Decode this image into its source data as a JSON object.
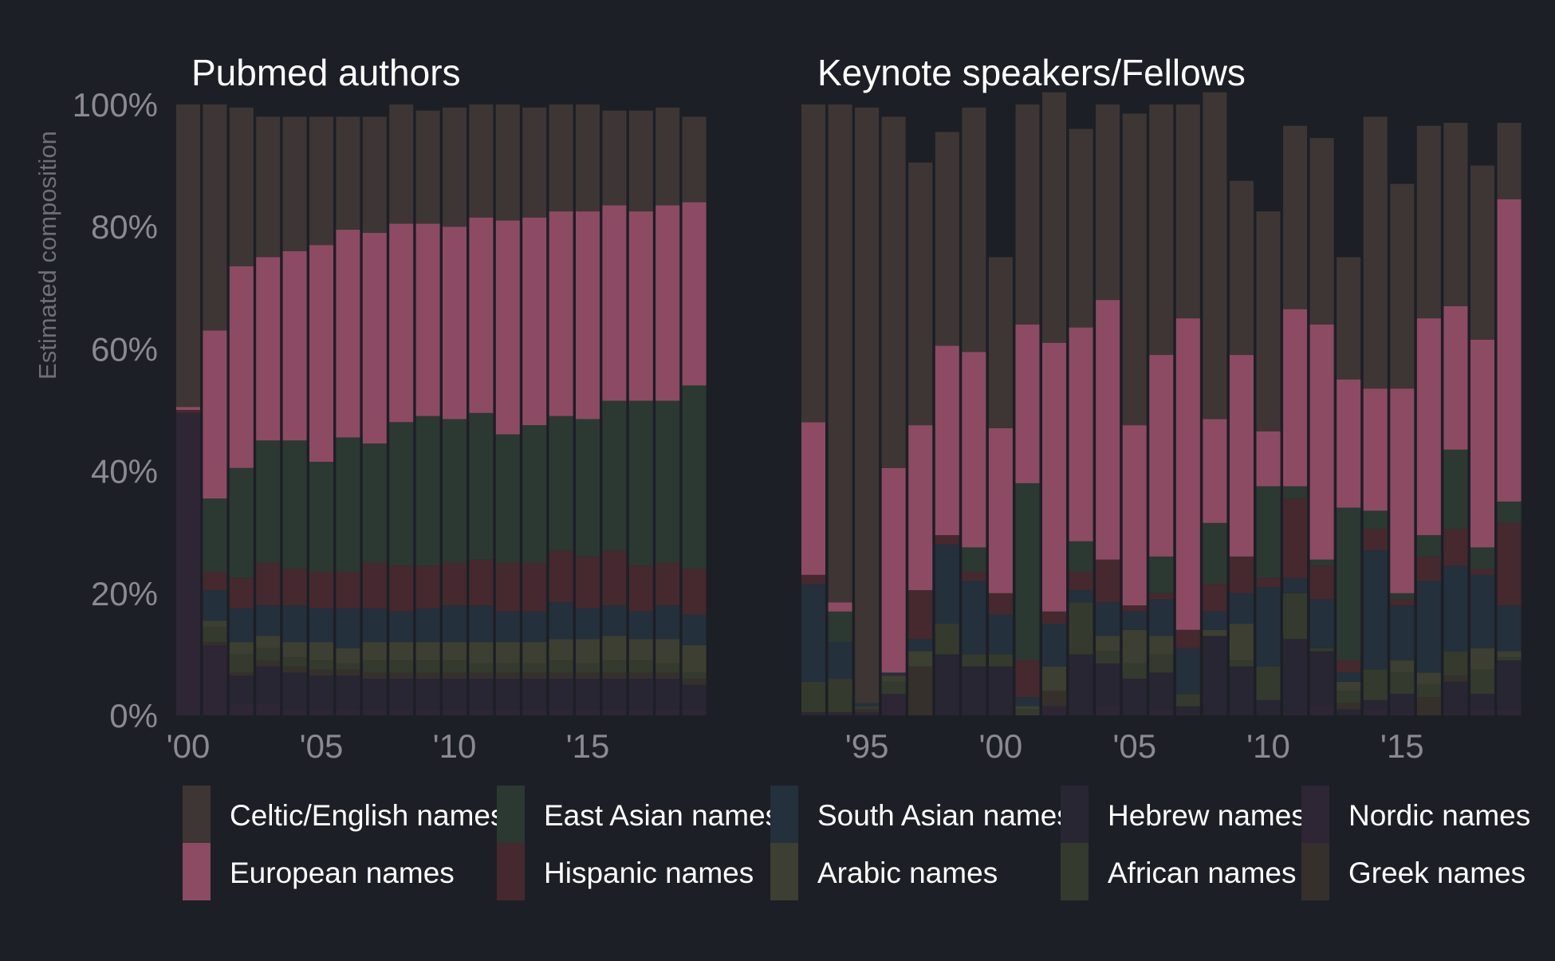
{
  "chart_data": {
    "type": "stacked-bar",
    "ylabel": "Estimated composition",
    "ylim": [
      0,
      100
    ],
    "yticks": [
      "0%",
      "20%",
      "40%",
      "60%",
      "80%",
      "100%"
    ],
    "categories": [
      "Nordic names",
      "Hebrew names",
      "Greek names",
      "African names",
      "Arabic names",
      "South Asian names",
      "Hispanic names",
      "East Asian names",
      "European names",
      "Celtic/English names"
    ],
    "colors": {
      "Celtic/English names": "#3d3635",
      "European names": "#8c4b63",
      "East Asian names": "#2c3832",
      "Hispanic names": "#45292f",
      "South Asian names": "#24303c",
      "Arabic names": "#3c3f31",
      "Hebrew names": "#282633",
      "African names": "#343a2d",
      "Nordic names": "#2e2634",
      "Greek names": "#36302d"
    },
    "legend": {
      "rows": [
        [
          "Celtic/English names",
          "East Asian names",
          "South Asian names",
          "Hebrew names",
          "Nordic names"
        ],
        [
          "European names",
          "Hispanic names",
          "Arabic names",
          "African names",
          "Greek names"
        ]
      ]
    },
    "panels": [
      {
        "title": "Pubmed authors",
        "x_start": 2000,
        "xticks": [
          "'00",
          "'05",
          "'10",
          "'15"
        ],
        "xtick_years": [
          2000,
          2005,
          2010,
          2015
        ],
        "series": [
          {
            "name": "Nordic names",
            "values": [
              49.5,
              11.5,
              2,
              2,
              1,
              1,
              1,
              1,
              1,
              1,
              1,
              1,
              1,
              1,
              1,
              1,
              1,
              1,
              1,
              1
            ]
          },
          {
            "name": "Hebrew names",
            "values": [
              0,
              0,
              4.5,
              6,
              6,
              5.5,
              5.5,
              5,
              5,
              5,
              5,
              5,
              5,
              5,
              5,
              5,
              5,
              5,
              5,
              4
            ]
          },
          {
            "name": "Greek names",
            "values": [
              0,
              0.5,
              0.5,
              1,
              1,
              1,
              1,
              1,
              1,
              1,
              1,
              1,
              1,
              1,
              1,
              1,
              1,
              1,
              1,
              1
            ]
          },
          {
            "name": "African names",
            "values": [
              0,
              2.5,
              3,
              2,
              1.5,
              1.5,
              1,
              2,
              2,
              2,
              2,
              1.5,
              1.5,
              1.5,
              2,
              1.5,
              2,
              2,
              1.5,
              1
            ]
          },
          {
            "name": "Arabic names",
            "values": [
              0,
              1,
              2,
              2,
              2.5,
              3,
              2.5,
              3,
              3,
              3,
              3,
              3.5,
              3.5,
              3.5,
              3.5,
              4,
              4,
              3.5,
              4,
              4.5
            ]
          },
          {
            "name": "South Asian names",
            "values": [
              0,
              5,
              5.5,
              5,
              6,
              5.5,
              6.5,
              5.5,
              5,
              5.5,
              6,
              6,
              5,
              5,
              6,
              5,
              5,
              4.5,
              5.5,
              5
            ]
          },
          {
            "name": "Hispanic names",
            "values": [
              0.5,
              3,
              5,
              7,
              6,
              6,
              6,
              7.5,
              7.5,
              7,
              7,
              7.5,
              8,
              8,
              8.5,
              8.5,
              9,
              7.5,
              7,
              7.5
            ]
          },
          {
            "name": "East Asian names",
            "values": [
              0,
              12,
              18,
              20,
              21,
              18,
              22,
              19.5,
              23.5,
              24.5,
              23.5,
              24,
              21,
              22.5,
              22,
              22.5,
              24.5,
              27,
              26.5,
              30
            ]
          },
          {
            "name": "European names",
            "values": [
              0.5,
              27.5,
              33,
              30,
              31,
              35.5,
              34,
              34.5,
              32.5,
              31.5,
              31.5,
              32,
              35,
              34,
              33.5,
              34,
              32,
              31,
              32,
              30
            ]
          },
          {
            "name": "Celtic/English names",
            "values": [
              49.5,
              37,
              26,
              23,
              22,
              21,
              18.5,
              19,
              19.5,
              18.5,
              19.5,
              18.5,
              19,
              18,
              17.5,
              17.5,
              15.5,
              16.5,
              16,
              14
            ]
          }
        ]
      },
      {
        "title": "Keynote speakers/Fellows",
        "x_start": 1993,
        "xticks": [
          "'95",
          "'00",
          "'05",
          "'10",
          "'15"
        ],
        "xtick_years": [
          1995,
          2000,
          2005,
          2010,
          2015
        ],
        "series": [
          {
            "name": "Nordic names",
            "values": [
              0.5,
              0.5,
              0.5,
              3.5,
              0,
              0,
              0,
              0,
              0,
              1.5,
              0,
              1.5,
              0,
              1,
              0.5,
              0,
              0,
              0,
              0.5,
              1.5,
              0,
              1,
              0.5,
              0,
              0.5,
              1,
              1
            ]
          },
          {
            "name": "Hebrew names",
            "values": [
              0,
              0,
              0,
              0,
              0,
              10,
              8,
              8,
              0,
              0,
              10,
              7,
              6,
              6,
              1,
              13,
              8,
              2.5,
              12,
              9,
              1,
              1.5,
              3,
              0,
              5,
              2.5,
              8
            ]
          },
          {
            "name": "Greek names",
            "values": [
              0,
              0,
              0.5,
              0,
              8,
              0,
              0,
              0,
              0,
              2.5,
              0,
              0,
              0,
              0,
              0,
              0,
              0,
              0,
              0,
              0,
              1,
              0,
              0,
              3,
              1,
              0,
              0
            ]
          },
          {
            "name": "African names",
            "values": [
              5,
              5.5,
              0.5,
              2,
              0,
              5,
              2,
              2,
              1,
              0,
              8.5,
              2,
              2.5,
              3,
              2,
              0,
              1,
              5.5,
              7.5,
              0.5,
              2,
              5,
              3.5,
              2,
              4,
              4,
              0.5
            ]
          },
          {
            "name": "Arabic names",
            "values": [
              0,
              0,
              0,
              1,
              2.5,
              0,
              0,
              0,
              0.5,
              4,
              0,
              2.5,
              5.5,
              3,
              0,
              1,
              6,
              0,
              0,
              0,
              1.5,
              0,
              2,
              2,
              0,
              3.5,
              1
            ]
          },
          {
            "name": "South Asian names",
            "values": [
              16,
              6,
              0.5,
              0.5,
              2,
              13,
              12,
              6.5,
              1.5,
              7,
              2,
              5.5,
              3,
              6,
              7.5,
              3,
              5,
              13,
              2.5,
              8,
              1.5,
              19.5,
              9,
              15,
              14,
              12,
              7.5
            ]
          },
          {
            "name": "Hispanic names",
            "values": [
              1.5,
              0,
              0,
              0,
              8,
              1.5,
              1.5,
              3.5,
              6,
              2,
              3,
              7,
              1,
              1,
              3,
              4.5,
              6,
              1.5,
              13,
              5.5,
              2,
              3.5,
              1,
              4,
              6,
              1,
              13.5
            ]
          },
          {
            "name": "East Asian names",
            "values": [
              0,
              5,
              0,
              0,
              0,
              0,
              4,
              0,
              29,
              0,
              5,
              0,
              0,
              6,
              0,
              10,
              0,
              15,
              2,
              1,
              25,
              3,
              1,
              3.5,
              13,
              3.5,
              3.5
            ]
          },
          {
            "name": "European names",
            "values": [
              25,
              1.5,
              0,
              33.5,
              27,
              31,
              32,
              27,
              26,
              44,
              35,
              42.5,
              29.5,
              33,
              51,
              17,
              33,
              9,
              29,
              38.5,
              21,
              20,
              33.5,
              35.5,
              23.5,
              34,
              49.5
            ]
          },
          {
            "name": "Celtic/English names",
            "values": [
              52,
              81.5,
              97.5,
              57.5,
              43,
              35,
              40,
              28,
              36,
              41,
              32.5,
              32,
              51,
              41,
              35,
              53.5,
              28.5,
              36,
              30,
              30.5,
              20,
              44.5,
              33.5,
              31.5,
              30,
              28.5,
              12.5
            ]
          }
        ]
      }
    ]
  }
}
